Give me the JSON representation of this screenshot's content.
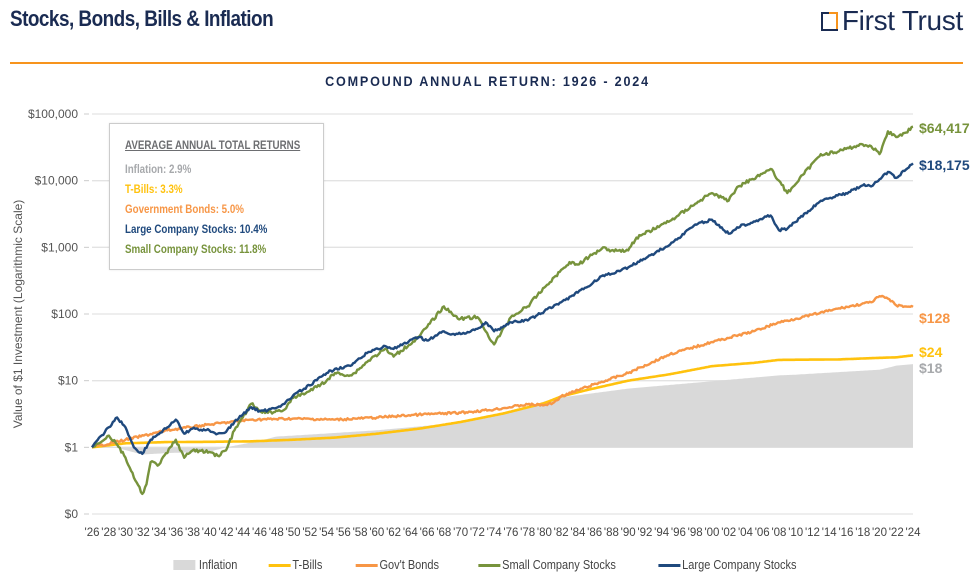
{
  "header": {
    "title": "Stocks, Bonds, Bills & Inflation",
    "logo_text": "First Trust",
    "subtitle": "COMPOUND ANNUAL RETURN: 1926 - 2024"
  },
  "colors": {
    "title": "#1a2b52",
    "rule": "#f7941d",
    "inflation": "#d9d9d9",
    "inflation_text": "#a7a9ac",
    "tbills": "#ffc20e",
    "govbonds": "#f79646",
    "small": "#77933c",
    "large": "#1f497d"
  },
  "stats_box": {
    "heading": "AVERAGE ANNUAL TOTAL RETURNS",
    "items": [
      {
        "label": "Inflation: 2.9%",
        "series": "inflation"
      },
      {
        "label": "T-Bills: 3.3%",
        "series": "tbills"
      },
      {
        "label": "Government Bonds: 5.0%",
        "series": "govbonds"
      },
      {
        "label": "Large Company Stocks: 10.4%",
        "series": "large"
      },
      {
        "label": "Small Company Stocks: 11.8%",
        "series": "small"
      }
    ]
  },
  "chart_data": {
    "type": "line",
    "title": "COMPOUND ANNUAL RETURN: 1926 - 2024",
    "xlabel": "",
    "ylabel": "Value of $1 Investment (Logarithmic Scale)",
    "yscale": "log",
    "ylim": [
      0.1,
      100000
    ],
    "xlim": [
      1926,
      2024
    ],
    "grid": true,
    "legend_position": "bottom",
    "y_ticks": [
      {
        "value": 100000,
        "label": "$100,000"
      },
      {
        "value": 10000,
        "label": "$10,000"
      },
      {
        "value": 1000,
        "label": "$1,000"
      },
      {
        "value": 100,
        "label": "$100"
      },
      {
        "value": 10,
        "label": "$10"
      },
      {
        "value": 1,
        "label": "$1"
      },
      {
        "value": 0.1,
        "label": "$0"
      }
    ],
    "x_ticks": [
      "'26",
      "'28",
      "'30",
      "'32",
      "'34",
      "'36",
      "'38",
      "'40",
      "'42",
      "'44",
      "'46",
      "'48",
      "'50",
      "'52",
      "'54",
      "'56",
      "'58",
      "'60",
      "'62",
      "'64",
      "'66",
      "'68",
      "'70",
      "'72",
      "'74",
      "'76",
      "'78",
      "'80",
      "'82",
      "'84",
      "'86",
      "'88",
      "'90",
      "'92",
      "'94",
      "'96",
      "'98",
      "'00",
      "'02",
      "'04",
      "'06",
      "'08",
      "'10",
      "'12",
      "'14",
      "'16",
      "'18",
      "'20",
      "'22",
      "'24"
    ],
    "x_tick_years_start": 1926,
    "x_tick_step": 2,
    "series": [
      {
        "name": "Inflation",
        "key": "inflation",
        "style": "area",
        "end_label": "$18",
        "x": [
          1926,
          1929,
          1932,
          1935,
          1940,
          1942,
          1946,
          1948,
          1950,
          1960,
          1970,
          1974,
          1978,
          1980,
          1982,
          1990,
          2000,
          2008,
          2010,
          2020,
          2021,
          2022,
          2024
        ],
        "y": [
          1.0,
          0.98,
          0.78,
          0.82,
          0.86,
          1.0,
          1.25,
          1.45,
          1.5,
          1.8,
          2.35,
          2.95,
          3.9,
          4.9,
          5.6,
          7.6,
          9.8,
          12.0,
          12.3,
          14.6,
          15.6,
          16.8,
          17.7
        ]
      },
      {
        "name": "T-Bills",
        "key": "tbills",
        "style": "line",
        "end_label": "$24",
        "x": [
          1926,
          1930,
          1935,
          1940,
          1945,
          1950,
          1955,
          1960,
          1965,
          1970,
          1975,
          1980,
          1982,
          1985,
          1990,
          1995,
          2000,
          2005,
          2008,
          2010,
          2015,
          2020,
          2022,
          2024
        ],
        "y": [
          1.0,
          1.15,
          1.2,
          1.21,
          1.23,
          1.3,
          1.4,
          1.6,
          1.9,
          2.4,
          3.2,
          4.6,
          5.8,
          7.2,
          10.0,
          12.5,
          16.5,
          18.5,
          20.5,
          20.6,
          20.8,
          22.0,
          22.4,
          24.0
        ]
      },
      {
        "name": "Gov't Bonds",
        "key": "govbonds",
        "style": "line",
        "end_label": "$128",
        "x": [
          1926,
          1930,
          1935,
          1940,
          1945,
          1950,
          1955,
          1960,
          1965,
          1970,
          1974,
          1978,
          1980,
          1981,
          1982,
          1985,
          1990,
          1995,
          2000,
          2005,
          2008,
          2010,
          2015,
          2019,
          2020,
          2021,
          2022,
          2023,
          2024
        ],
        "y": [
          1.0,
          1.3,
          1.8,
          2.2,
          2.6,
          2.7,
          2.6,
          2.8,
          3.1,
          3.3,
          3.7,
          4.4,
          4.3,
          4.6,
          5.8,
          8.0,
          13.0,
          25.0,
          38.0,
          55.0,
          75.0,
          85.0,
          120.0,
          150.0,
          185.0,
          170.0,
          135.0,
          130.0,
          128.0
        ]
      },
      {
        "name": "Small Company Stocks",
        "key": "small",
        "style": "line",
        "end_label": "$64,417",
        "x": [
          1926,
          1928,
          1929,
          1930,
          1931,
          1932,
          1932.5,
          1933,
          1934,
          1936,
          1937,
          1938,
          1940,
          1941,
          1942,
          1943,
          1944,
          1945,
          1946,
          1947,
          1949,
          1950,
          1952,
          1954,
          1955,
          1957,
          1959,
          1961,
          1962,
          1965,
          1968,
          1969,
          1970,
          1972,
          1973,
          1974,
          1976,
          1978,
          1980,
          1983,
          1984,
          1987,
          1988,
          1990,
          1991,
          1995,
          1998,
          1999,
          2000,
          2002,
          2003,
          2007,
          2008,
          2009,
          2013,
          2015,
          2016,
          2018,
          2019,
          2020,
          2021,
          2022,
          2023,
          2024
        ],
        "y": [
          1.0,
          1.5,
          1.1,
          0.7,
          0.35,
          0.2,
          0.28,
          0.6,
          0.55,
          1.3,
          0.7,
          0.9,
          0.85,
          0.75,
          0.9,
          1.8,
          2.8,
          4.5,
          3.5,
          3.3,
          3.7,
          5.5,
          7.0,
          10.0,
          13.0,
          12.0,
          20.0,
          30.0,
          23.0,
          45.0,
          130.0,
          100.0,
          85.0,
          90.0,
          55.0,
          35.0,
          90.0,
          130.0,
          250.0,
          600.0,
          550.0,
          1000.0,
          900.0,
          900.0,
          1400.0,
          2500.0,
          4500.0,
          5500.0,
          6500.0,
          5000.0,
          8000.0,
          15000.0,
          10000.0,
          6500.0,
          25000.0,
          27000.0,
          30000.0,
          35000.0,
          33000.0,
          25000.0,
          55000.0,
          45000.0,
          52000.0,
          64417.0
        ]
      },
      {
        "name": "Large Company Stocks",
        "key": "large",
        "style": "line",
        "end_label": "$18,175",
        "x": [
          1926,
          1928,
          1929,
          1930,
          1931,
          1932,
          1933,
          1935,
          1936,
          1937,
          1938,
          1940,
          1941,
          1942,
          1943,
          1945,
          1946,
          1947,
          1949,
          1950,
          1952,
          1954,
          1955,
          1957,
          1959,
          1961,
          1962,
          1965,
          1966,
          1968,
          1969,
          1970,
          1972,
          1973,
          1974,
          1976,
          1978,
          1980,
          1982,
          1985,
          1987,
          1988,
          1990,
          1995,
          1998,
          2000,
          2002,
          2003,
          2007,
          2008,
          2009,
          2013,
          2015,
          2016,
          2018,
          2019,
          2020,
          2021,
          2022,
          2023,
          2024
        ],
        "y": [
          1.0,
          2.0,
          2.8,
          2.0,
          1.0,
          0.8,
          1.3,
          2.0,
          2.6,
          1.6,
          1.9,
          1.8,
          1.6,
          1.7,
          2.4,
          4.0,
          3.5,
          3.6,
          4.5,
          6.0,
          8.5,
          13.0,
          15.0,
          17.0,
          27.0,
          33.0,
          30.0,
          45.0,
          40.0,
          55.0,
          50.0,
          50.0,
          60.0,
          75.0,
          55.0,
          75.0,
          80.0,
          110.0,
          150.0,
          250.0,
          380.0,
          400.0,
          500.0,
          1100.0,
          2200.0,
          2600.0,
          1600.0,
          2000.0,
          3000.0,
          1800.0,
          1900.0,
          5000.0,
          6000.0,
          6500.0,
          8500.0,
          8200.0,
          10500.0,
          13500.0,
          11000.0,
          14000.0,
          18175.0
        ]
      }
    ]
  },
  "legend": {
    "items": [
      {
        "label": "Inflation",
        "key": "inflation",
        "style": "area"
      },
      {
        "label": "T-Bills",
        "key": "tbills",
        "style": "line"
      },
      {
        "label": "Gov't Bonds",
        "key": "govbonds",
        "style": "line"
      },
      {
        "label": "Small Company Stocks",
        "key": "small",
        "style": "line"
      },
      {
        "label": "Large Company Stocks",
        "key": "large",
        "style": "line"
      }
    ]
  }
}
